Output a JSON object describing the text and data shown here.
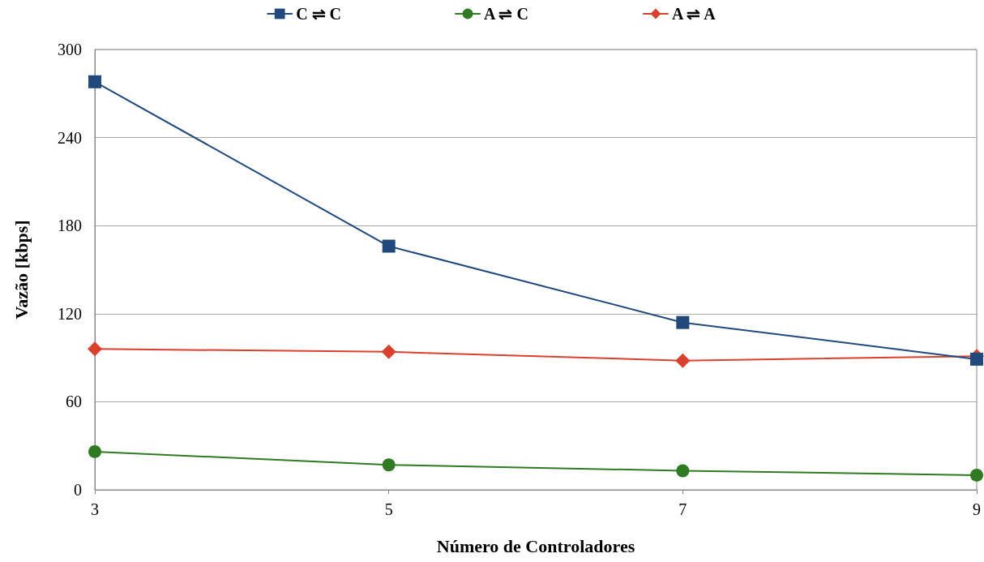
{
  "chart_data": {
    "type": "line",
    "xlabel": "Número de Controladores",
    "ylabel": "Vazão [kbps]",
    "x": [
      3,
      5,
      7,
      9
    ],
    "series": [
      {
        "name": "C ⇌ C",
        "color": "#22497c",
        "marker": "square",
        "values": [
          278,
          166,
          114,
          89
        ]
      },
      {
        "name": "A ⇌ C",
        "color": "#2f7a22",
        "marker": "circle",
        "values": [
          26,
          17,
          13,
          10
        ]
      },
      {
        "name": "A ⇌ A",
        "color": "#d9402e",
        "marker": "diamond",
        "values": [
          96,
          94,
          88,
          91
        ]
      }
    ],
    "xlim": [
      3,
      9
    ],
    "xticks": [
      3,
      5,
      7,
      9
    ],
    "ylim": [
      0,
      300
    ],
    "yticks": [
      0,
      60,
      120,
      180,
      240,
      300
    ],
    "grid": "y",
    "legend": "top",
    "line_style": "solid"
  }
}
